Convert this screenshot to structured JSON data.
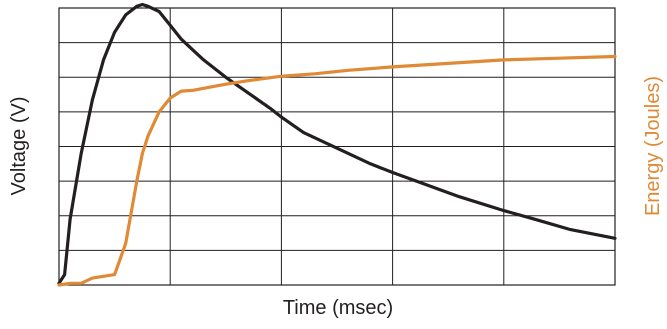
{
  "colors": {
    "voltage": "#231f20",
    "energy": "#e08a35",
    "grid": "#231f20",
    "background": "#ffffff"
  },
  "chart_data": {
    "type": "line",
    "title": "",
    "xlabel": "Time (msec)",
    "ylabel": "Voltage (V)",
    "y2label": "Energy (Joules)",
    "tick_labels_shown": false,
    "grid": true,
    "grid_divisions": {
      "x": 5,
      "y": 8
    },
    "xlim": [
      0,
      5
    ],
    "ylim": [
      0,
      8
    ],
    "y2lim": [
      0,
      8
    ],
    "series": [
      {
        "axis": "left",
        "color": "#231f20",
        "x": [
          0,
          0.05,
          0.1,
          0.2,
          0.3,
          0.4,
          0.5,
          0.6,
          0.7,
          0.75,
          0.8,
          0.9,
          1.0,
          1.1,
          1.2,
          1.3,
          1.5,
          1.7,
          1.9,
          2.0,
          2.2,
          2.5,
          2.8,
          3.0,
          3.3,
          3.6,
          4.0,
          4.3,
          4.6,
          5.0
        ],
        "y": [
          0.05,
          0.3,
          1.9,
          3.8,
          5.35,
          6.5,
          7.3,
          7.8,
          8.05,
          8.1,
          8.05,
          7.9,
          7.5,
          7.1,
          6.8,
          6.5,
          6.0,
          5.55,
          5.1,
          4.85,
          4.4,
          3.95,
          3.5,
          3.25,
          2.9,
          2.55,
          2.15,
          1.88,
          1.6,
          1.35
        ]
      },
      {
        "axis": "right",
        "color": "#e08a35",
        "x": [
          0,
          0.1,
          0.2,
          0.3,
          0.4,
          0.5,
          0.6,
          0.7,
          0.75,
          0.8,
          0.9,
          1.0,
          1.1,
          1.2,
          1.3,
          1.5,
          1.7,
          2.0,
          2.3,
          2.6,
          3.0,
          3.5,
          4.0,
          4.5,
          5.0
        ],
        "y": [
          0,
          0.05,
          0.05,
          0.2,
          0.25,
          0.3,
          1.2,
          3.0,
          3.8,
          4.3,
          5.0,
          5.4,
          5.6,
          5.62,
          5.68,
          5.8,
          5.9,
          6.03,
          6.1,
          6.2,
          6.3,
          6.4,
          6.5,
          6.55,
          6.6
        ]
      }
    ]
  }
}
